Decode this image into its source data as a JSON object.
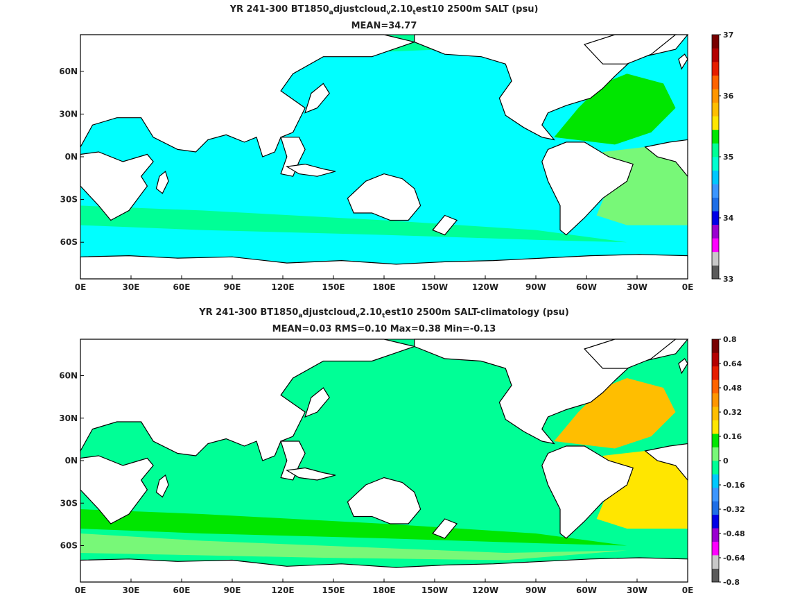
{
  "panels": [
    {
      "title_parts": [
        "YR 241-300 BT1850",
        "a",
        "djustcloud",
        "v",
        "2.10",
        "t",
        "est10 2500m SALT (psu)"
      ],
      "subtitle": "MEAN=34.77",
      "colorbar": {
        "labels": [
          "37",
          "36",
          "35",
          "34",
          "33"
        ],
        "colors": [
          "#5a5a5a",
          "#c8c8c8",
          "#ff00ff",
          "#9a00d0",
          "#0000e6",
          "#1e6ee6",
          "#3c96ff",
          "#00c8ff",
          "#00ffd0",
          "#00ff96",
          "#00e600",
          "#ffe600",
          "#ffbe00",
          "#ff9600",
          "#ff6400",
          "#e61e00",
          "#b40000",
          "#780000"
        ]
      },
      "water_color": "#00ffff",
      "regions": [
        {
          "name": "north-atlantic",
          "color": "#00e600"
        },
        {
          "name": "south-atlantic",
          "color": "#78f878"
        },
        {
          "name": "southern-band",
          "color": "#00ff96"
        },
        {
          "name": "arctic",
          "color": "#00ff96"
        }
      ]
    },
    {
      "title_parts": [
        "YR 241-300 BT1850",
        "a",
        "djustcloud",
        "v",
        "2.10",
        "t",
        "est10 2500m SALT-climatology (psu)"
      ],
      "subtitle": "MEAN=0.03   RMS=0.10   Max=0.38   Min=-0.13",
      "colorbar": {
        "labels": [
          "0.8",
          "0.64",
          "0.48",
          "0.32",
          "0.16",
          "0",
          "-0.16",
          "-0.32",
          "-0.48",
          "-0.64",
          "-0.8"
        ],
        "colors": [
          "#5a5a5a",
          "#c8c8c8",
          "#ff00ff",
          "#9a00d0",
          "#0000e6",
          "#1e6ee6",
          "#3c96ff",
          "#00c8ff",
          "#00ff96",
          "#78f878",
          "#00e600",
          "#ffe600",
          "#ffbe00",
          "#ff9600",
          "#ff6400",
          "#e61e00",
          "#b40000",
          "#780000"
        ]
      },
      "water_color": "#00ff96",
      "regions": [
        {
          "name": "north-atlantic",
          "color": "#ffbe00"
        },
        {
          "name": "south-atlantic",
          "color": "#ffe600"
        },
        {
          "name": "southern-band",
          "color": "#00e600"
        },
        {
          "name": "southern-outer",
          "color": "#78f878"
        }
      ]
    }
  ],
  "x_ticks": [
    "0E",
    "30E",
    "60E",
    "90E",
    "120E",
    "150E",
    "180E",
    "150W",
    "120W",
    "90W",
    "60W",
    "30W",
    "0E"
  ],
  "y_ticks": [
    "60N",
    "30N",
    "0N",
    "30S",
    "60S"
  ]
}
